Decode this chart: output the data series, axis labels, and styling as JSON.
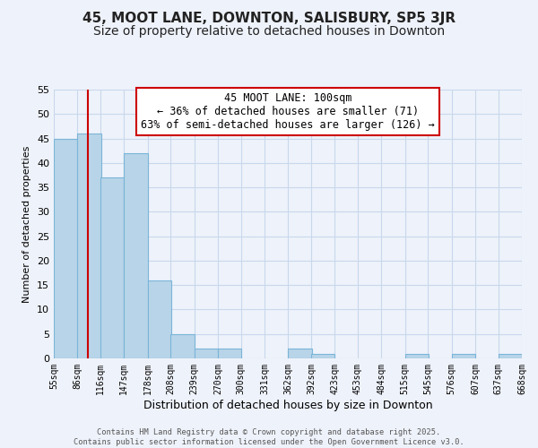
{
  "title": "45, MOOT LANE, DOWNTON, SALISBURY, SP5 3JR",
  "subtitle": "Size of property relative to detached houses in Downton",
  "xlabel": "Distribution of detached houses by size in Downton",
  "ylabel": "Number of detached properties",
  "bins_start": [
    55,
    86,
    116,
    147,
    178,
    208,
    239,
    270,
    300,
    331,
    362,
    392,
    423,
    453,
    484,
    515,
    545,
    576,
    607,
    637
  ],
  "bin_width": 31,
  "counts": [
    45,
    46,
    37,
    42,
    16,
    5,
    2,
    2,
    0,
    0,
    2,
    1,
    0,
    0,
    0,
    1,
    0,
    1,
    0,
    1
  ],
  "bar_color": "#b8d4e8",
  "bar_edge_color": "#7ab5d8",
  "grid_color": "#c8d8ec",
  "background_color": "#eef2fa",
  "property_line_x": 100,
  "property_line_color": "#cc0000",
  "ylim": [
    0,
    55
  ],
  "yticks": [
    0,
    5,
    10,
    15,
    20,
    25,
    30,
    35,
    40,
    45,
    50,
    55
  ],
  "annotation_line1": "45 MOOT LANE: 100sqm",
  "annotation_line2": "← 36% of detached houses are smaller (71)",
  "annotation_line3": "63% of semi-detached houses are larger (126) →",
  "footer_line1": "Contains HM Land Registry data © Crown copyright and database right 2025.",
  "footer_line2": "Contains public sector information licensed under the Open Government Licence v3.0.",
  "title_fontsize": 11,
  "subtitle_fontsize": 10,
  "tick_label_fontsize": 7,
  "xlabel_fontsize": 9,
  "ylabel_fontsize": 8,
  "annotation_fontsize": 8.5
}
